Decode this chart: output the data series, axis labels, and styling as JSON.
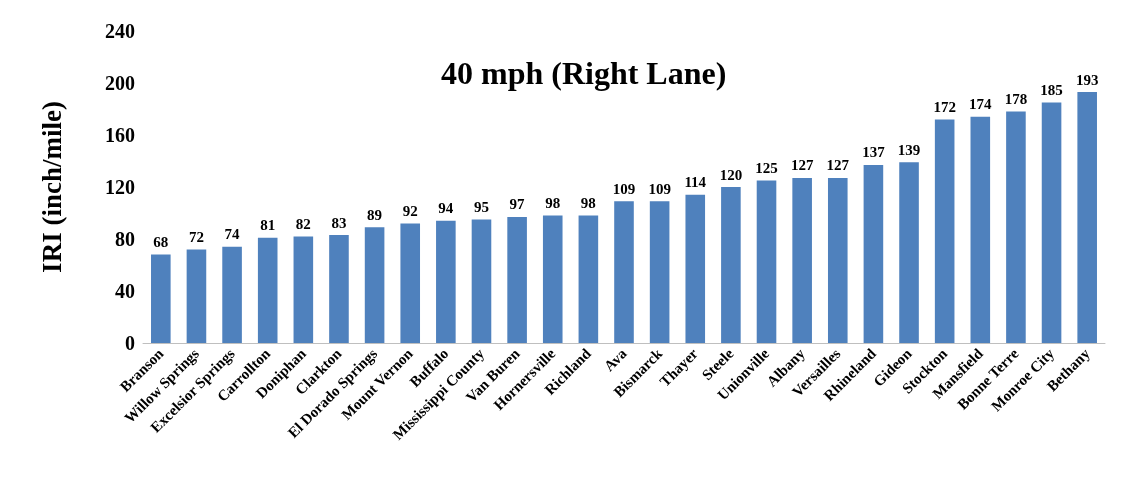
{
  "chart_data": {
    "type": "bar",
    "title": "40 mph (Right Lane)",
    "ylabel": "IRI (inch/mile)",
    "categories": [
      "Branson",
      "Willow Springs",
      "Excelsior Springs",
      "Carrollton",
      "Doniphan",
      "Clarkton",
      "El Dorado Springs",
      "Mount Vernon",
      "Buffalo",
      "Mississippi County",
      "Van Buren",
      "Hornersville",
      "Richland",
      "Ava",
      "Bismarck",
      "Thayer",
      "Steele",
      "Unionville",
      "Albany",
      "Versailles",
      "Rhineland",
      "Gideon",
      "Stockton",
      "Mansfield",
      "Bonne Terre",
      "Monroe City",
      "Bethany"
    ],
    "values": [
      68,
      72,
      74,
      81,
      82,
      83,
      89,
      92,
      94,
      95,
      97,
      98,
      98,
      109,
      109,
      114,
      120,
      125,
      127,
      127,
      137,
      139,
      172,
      174,
      178,
      185,
      193
    ],
    "color": "#4f81bd",
    "ylim": [
      0,
      240
    ],
    "yticks": [
      0,
      40,
      80,
      120,
      160,
      200,
      240
    ],
    "grid": false,
    "data_labels": true
  }
}
